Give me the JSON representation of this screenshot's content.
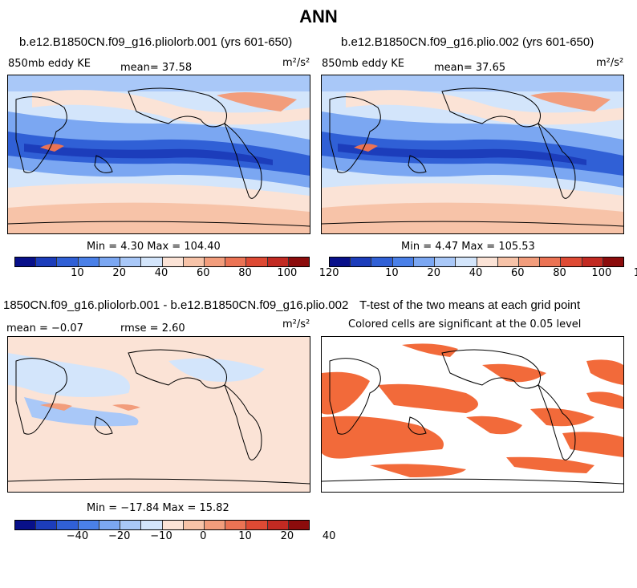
{
  "page": {
    "title": "ANN"
  },
  "panels": [
    {
      "title": "b.e12.B1850CN.f09_g16.pliolorb.001 (yrs 601-650)",
      "left_label": "850mb eddy KE",
      "mean_label": "mean=  37.58",
      "units": "m²/s²",
      "minmax": "Min =   4.30 Max = 104.40"
    },
    {
      "title": "b.e12.B1850CN.f09_g16.plio.002 (yrs 601-650)",
      "left_label": "850mb eddy KE",
      "mean_label": "mean=  37.65",
      "units": "m²/s²",
      "minmax": "Min =   4.47 Max = 105.53"
    },
    {
      "title": "1850CN.f09_g16.pliolorb.001 - b.e12.B1850CN.f09_g16.plio.002",
      "left_label": "mean = −0.07",
      "mean_label": "rmse =   2.60",
      "units": "m²/s²",
      "minmax": "Min = −17.84 Max =  15.82"
    },
    {
      "title": "T-test of the two means at each grid point",
      "subtitle": "Colored cells are significant at the 0.05 level"
    }
  ],
  "colorbars": {
    "ke": {
      "colors": [
        "#08108a",
        "#1c3dbb",
        "#3060d6",
        "#4a80e8",
        "#7ba7f2",
        "#a9c8f8",
        "#d3e5fb",
        "#fbe3d6",
        "#f7c3a8",
        "#f29d7c",
        "#eb7354",
        "#de4a34",
        "#c22a22",
        "#8c0c0c"
      ],
      "ticks": [
        "10",
        "20",
        "40",
        "60",
        "80",
        "100",
        "120"
      ]
    },
    "diff": {
      "colors": [
        "#08108a",
        "#1c3dbb",
        "#3060d6",
        "#4a80e8",
        "#7ba7f2",
        "#a9c8f8",
        "#d3e5fb",
        "#fbe3d6",
        "#f7c3a8",
        "#f29d7c",
        "#eb7354",
        "#de4a34",
        "#c22a22",
        "#8c0c0c"
      ],
      "ticks": [
        "−40",
        "−20",
        "−10",
        "0",
        "10",
        "20",
        "40"
      ]
    }
  },
  "colors": {
    "ke_band_light": "#d3e5fb",
    "ke_band_mid": "#7ba7f2",
    "ke_band_dark": "#3060d6",
    "ke_band_deep": "#1c3dbb",
    "ke_warm": "#f7c3a8",
    "ke_warm2": "#f29d7c",
    "diff_pos": "#fbe3d6",
    "diff_neg": "#d3e5fb",
    "ttest_sig": "#f26a3a"
  }
}
